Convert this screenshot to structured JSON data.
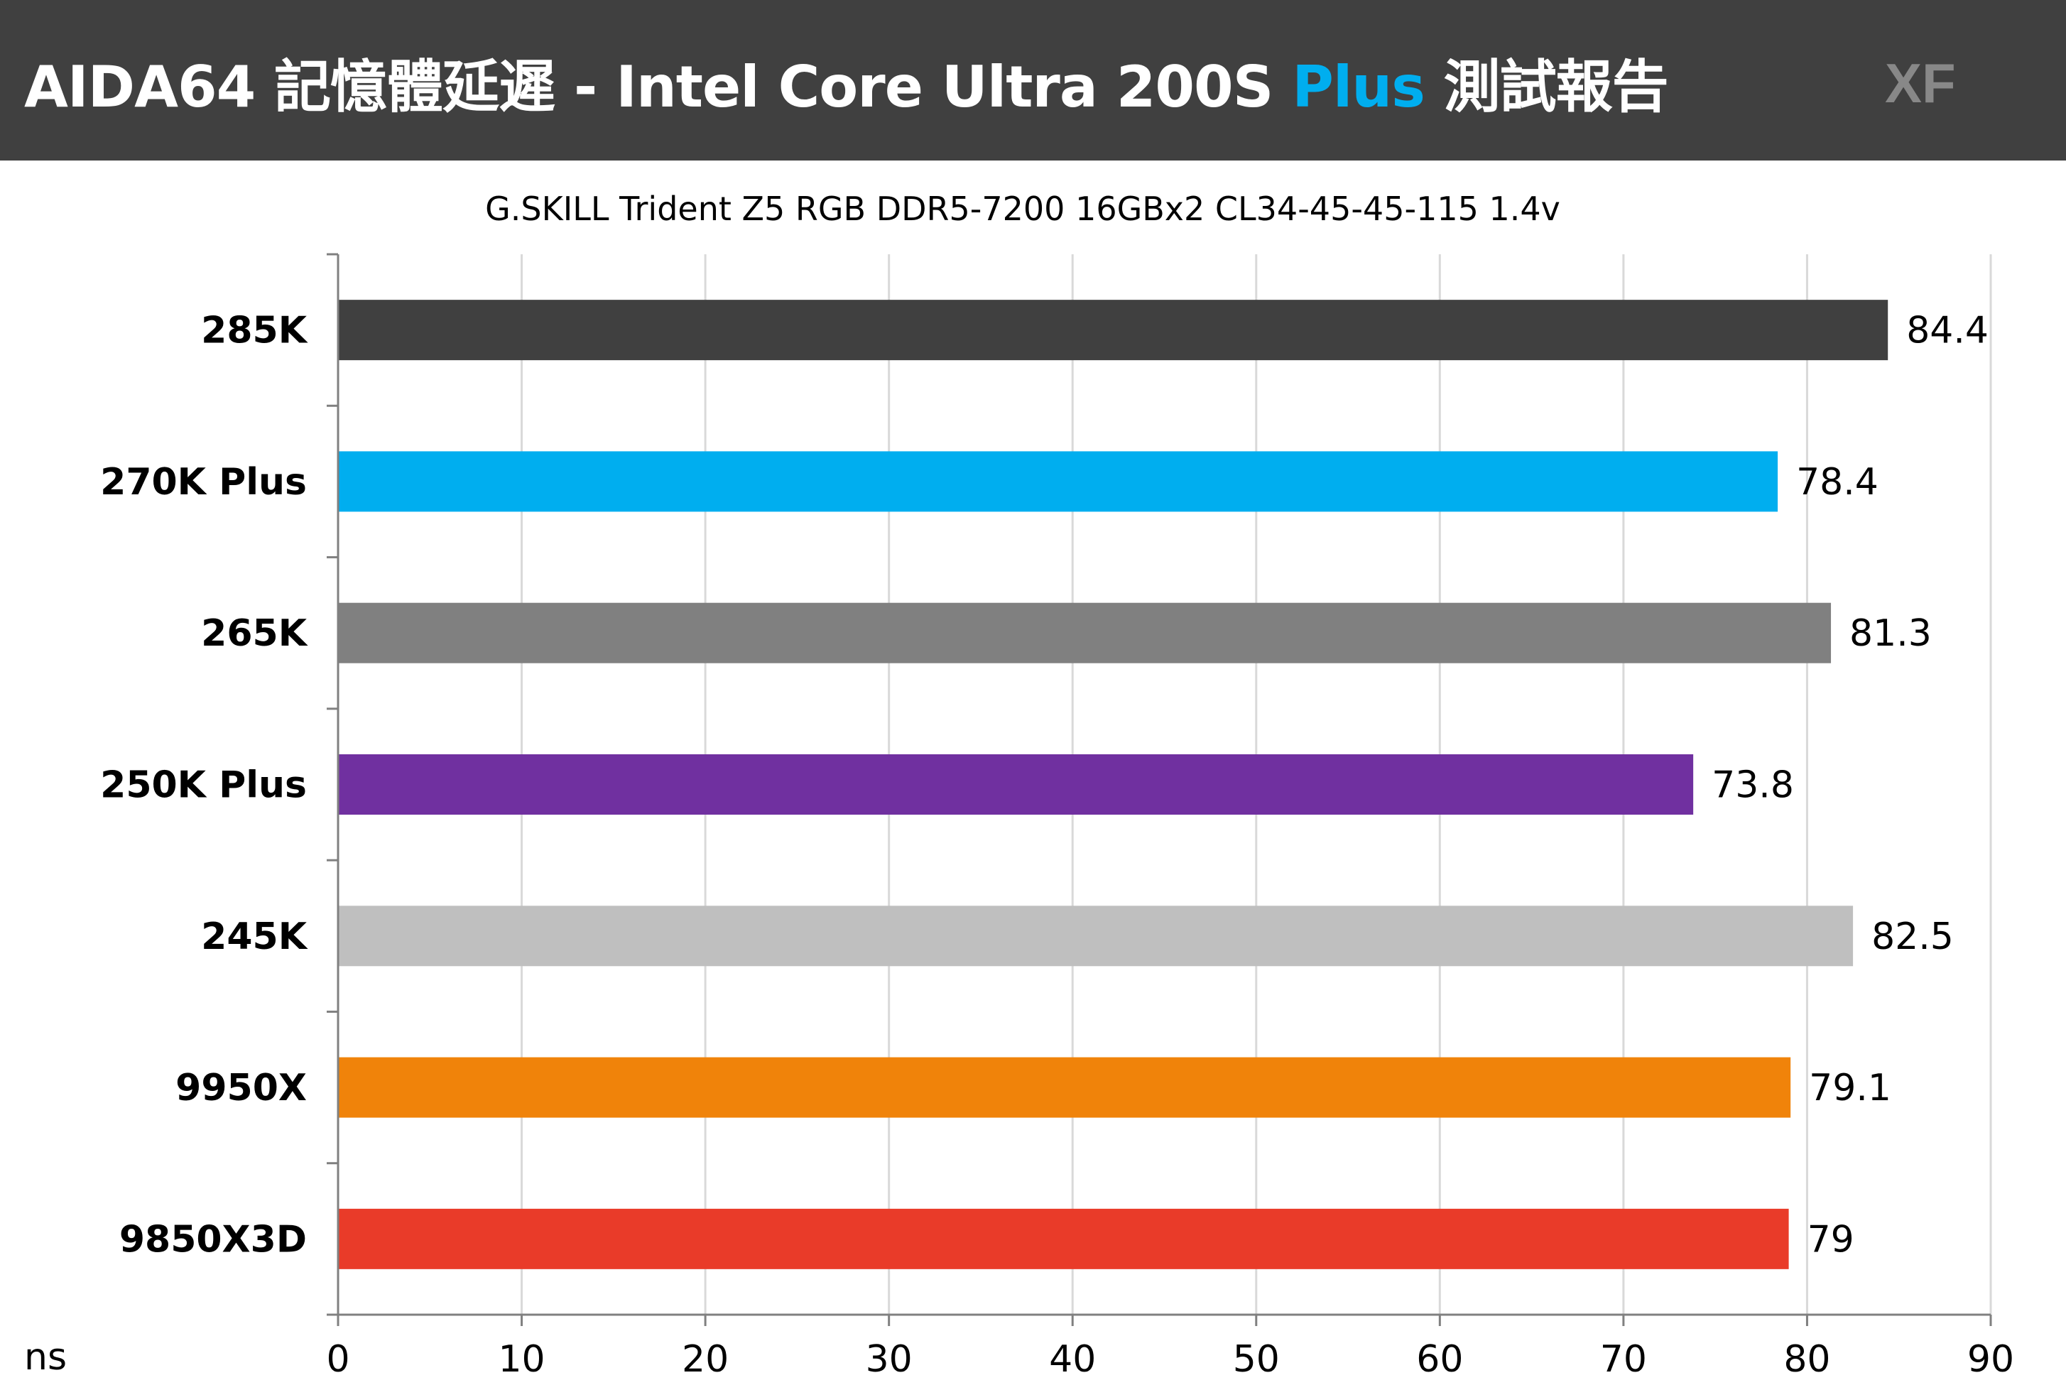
{
  "header": {
    "title_prefix": "AIDA64 記憶體延遲 - Intel Core Ultra 200S ",
    "title_highlight": "Plus",
    "title_suffix": " 測試報告",
    "logo": "XF",
    "highlight_color": "#00AEEF"
  },
  "chart_data": {
    "type": "bar",
    "orientation": "horizontal",
    "title": "AIDA64 記憶體延遲 - Intel Core Ultra 200S Plus 測試報告",
    "subtitle": "G.SKILL Trident Z5 RGB DDR5-7200 16GBx2 CL34-45-45-115 1.4v",
    "categories": [
      "285K",
      "270K Plus",
      "265K",
      "250K Plus",
      "245K",
      "9950X",
      "9850X3D"
    ],
    "values": [
      84.4,
      78.4,
      81.3,
      73.8,
      82.5,
      79.1,
      79
    ],
    "value_labels": [
      "84.4",
      "78.4",
      "81.3",
      "73.8",
      "82.5",
      "79.1",
      "79"
    ],
    "colors": [
      "#404040",
      "#00AEEF",
      "#808080",
      "#7030A0",
      "#BFBFBF",
      "#F0830A",
      "#E93B29"
    ],
    "xlabel": "ns",
    "xlim": [
      0,
      90
    ],
    "xticks": [
      0,
      10,
      20,
      30,
      40,
      50,
      60,
      70,
      80,
      90
    ],
    "grid": true
  }
}
